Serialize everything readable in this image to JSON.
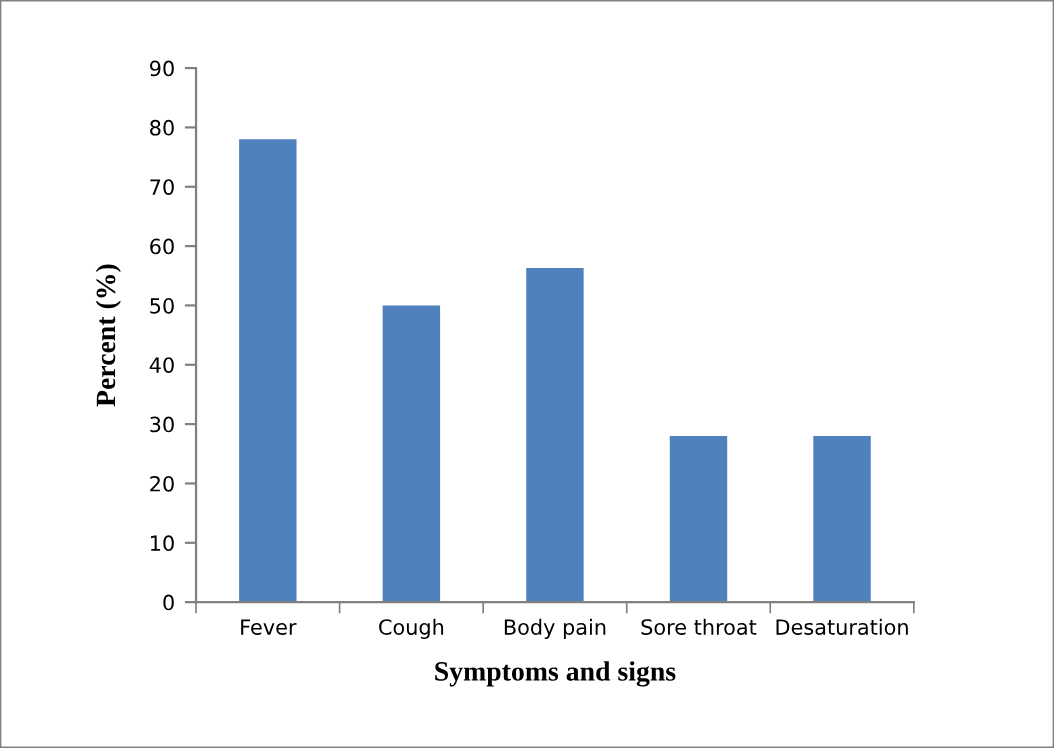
{
  "chart_data": {
    "type": "bar",
    "xlabel": "Symptoms and signs",
    "ylabel": "Percent (%)",
    "categories": [
      "Fever",
      "Cough",
      "Body pain",
      "Sore throat",
      "Desaturation"
    ],
    "values": [
      78,
      50,
      56.3,
      28,
      28
    ],
    "color": "#4f81bd",
    "ylim": [
      0,
      90
    ],
    "yticks": [
      0,
      10,
      20,
      30,
      40,
      50,
      60,
      70,
      80,
      90
    ],
    "grid": false,
    "legend": false
  }
}
